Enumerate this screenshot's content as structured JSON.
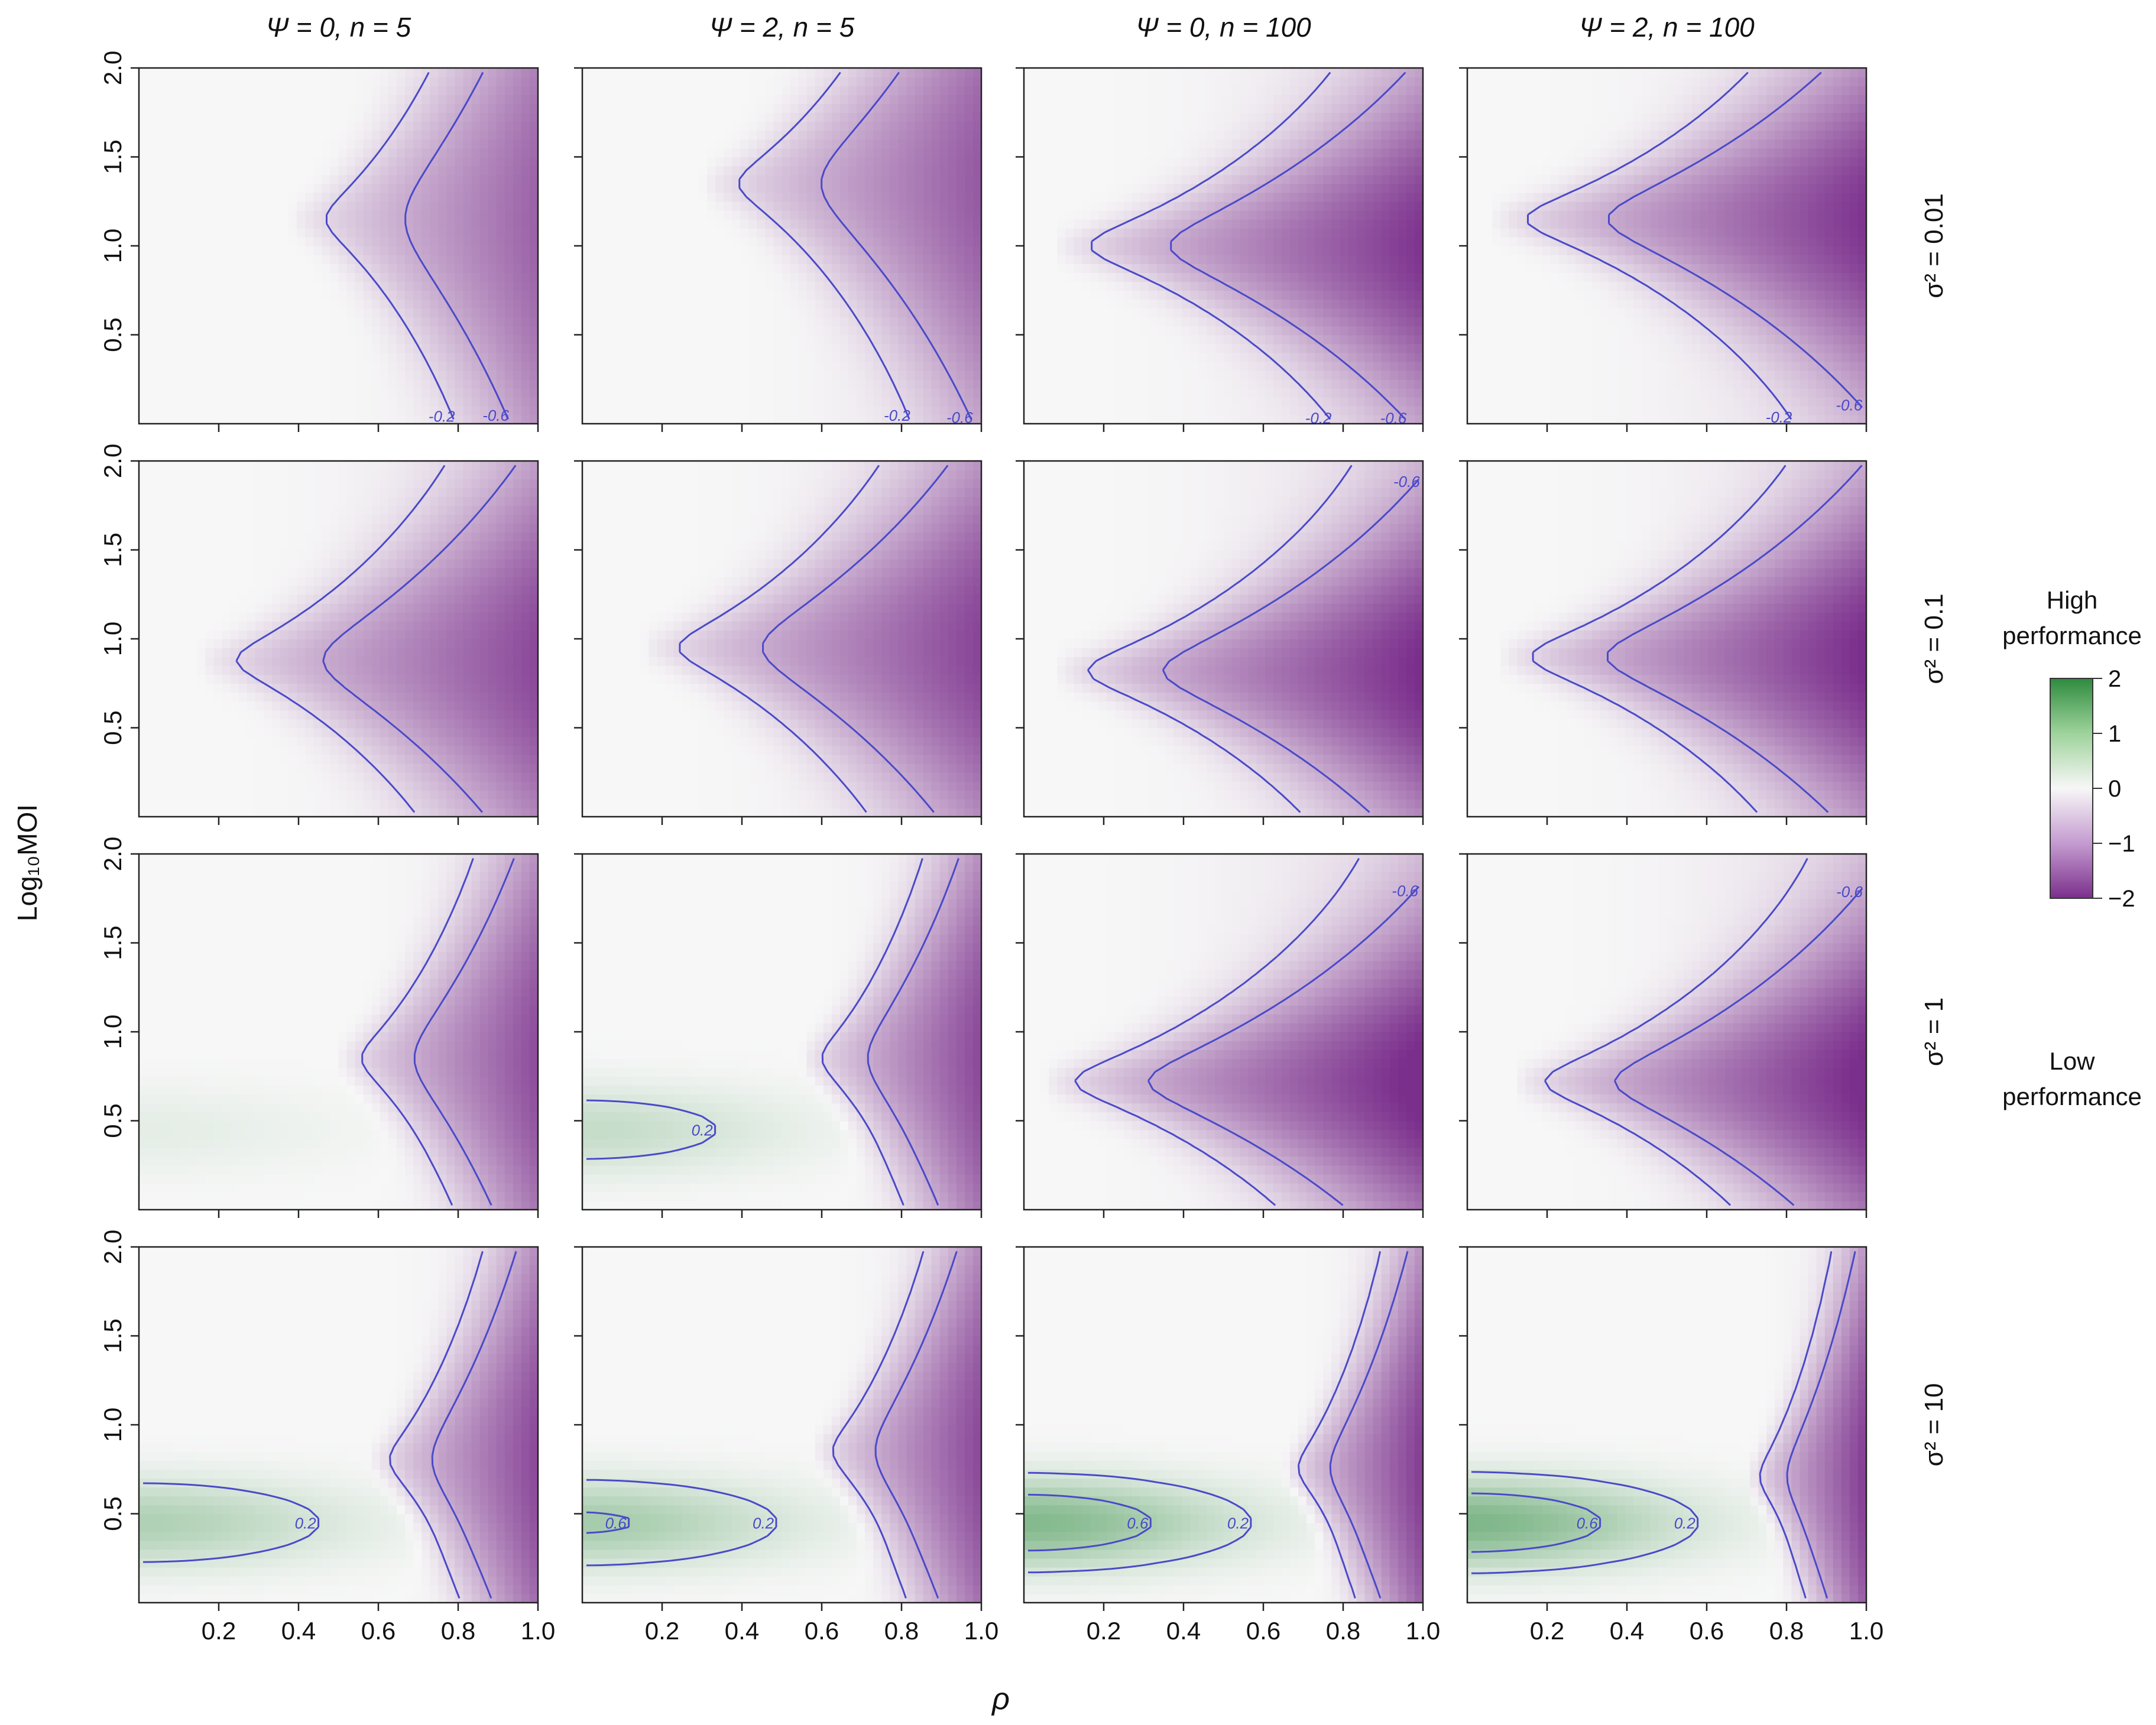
{
  "colors": {
    "low": "#7b2f8c",
    "mid": "#f7f7f7",
    "high": "#2e8b3e",
    "contour": "#4a4ac8"
  },
  "chart_data": {
    "type": "heatmap",
    "layout": "4x4 small multiples",
    "xlabel": "ρ",
    "ylabel": "Log₁₀MOI",
    "xlim": [
      0,
      1.0
    ],
    "ylim": [
      0,
      2.0
    ],
    "x_ticks": [
      "0.2",
      "0.4",
      "0.6",
      "0.8",
      "1.0"
    ],
    "y_ticks": [
      "0.5",
      "1.0",
      "1.5",
      "2.0"
    ],
    "columns": [
      "Ψ = 0, n = 5",
      "Ψ = 2, n = 5",
      "Ψ = 0, n = 100",
      "Ψ = 2, n = 100"
    ],
    "rows": [
      "σ² = 0.01",
      "σ² = 0.1",
      "σ² = 1",
      "σ² = 10"
    ],
    "contour_levels": [
      "-0.6",
      "-0.2",
      "0.2",
      "0.6"
    ],
    "colorbar": {
      "range": [
        -2,
        2
      ],
      "ticks": [
        "2",
        "1",
        "0",
        "−1",
        "−2"
      ],
      "top_label": "High performance",
      "bottom_label": "Low performance"
    }
  }
}
